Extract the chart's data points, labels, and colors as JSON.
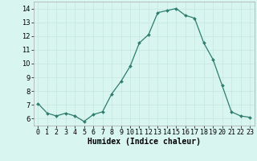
{
  "x": [
    0,
    1,
    2,
    3,
    4,
    5,
    6,
    7,
    8,
    9,
    10,
    11,
    12,
    13,
    14,
    15,
    16,
    17,
    18,
    19,
    20,
    21,
    22,
    23
  ],
  "y": [
    7.1,
    6.4,
    6.2,
    6.4,
    6.2,
    5.8,
    6.3,
    6.5,
    7.8,
    8.7,
    9.8,
    11.5,
    12.1,
    13.7,
    13.85,
    14.0,
    13.5,
    13.3,
    11.5,
    10.3,
    8.4,
    6.5,
    6.2,
    6.1
  ],
  "line_color": "#2e7d6e",
  "marker": "D",
  "marker_size": 2.0,
  "bg_color": "#d8f5f0",
  "grid_color": "#c8e8e2",
  "xlabel": "Humidex (Indice chaleur)",
  "xlabel_fontsize": 7,
  "tick_fontsize": 6,
  "xlim": [
    -0.5,
    23.5
  ],
  "ylim": [
    5.5,
    14.5
  ],
  "yticks": [
    6,
    7,
    8,
    9,
    10,
    11,
    12,
    13,
    14
  ],
  "xticks": [
    0,
    1,
    2,
    3,
    4,
    5,
    6,
    7,
    8,
    9,
    10,
    11,
    12,
    13,
    14,
    15,
    16,
    17,
    18,
    19,
    20,
    21,
    22,
    23
  ]
}
